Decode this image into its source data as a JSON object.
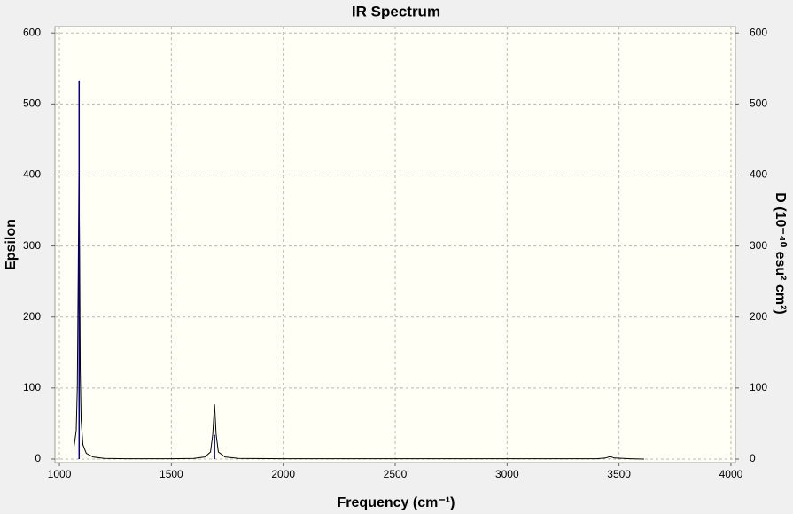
{
  "chart_data": {
    "type": "line",
    "title": "IR Spectrum",
    "x_label": "Frequency (cm⁻¹)",
    "y_label": "Epsilon",
    "y2_label": "D (10⁻⁴⁰ esu² cm²)",
    "xlim": [
      980,
      4020
    ],
    "xticks": [
      1000,
      1500,
      2000,
      2500,
      3000,
      3500,
      4000
    ],
    "ylim": [
      -5,
      609
    ],
    "yticks": [
      0,
      100,
      200,
      300,
      400,
      500,
      600
    ],
    "y2lim": [
      -5,
      609
    ],
    "y2ticks": [
      0,
      100,
      200,
      300,
      400,
      500,
      600
    ],
    "grid": true,
    "series": [
      {
        "style": "line",
        "color": "#000000",
        "x": [
          1065,
          1075,
          1080,
          1084,
          1087,
          1090,
          1093,
          1097,
          1105,
          1120,
          1150,
          1200,
          1300,
          1500,
          1600,
          1650,
          1675,
          1685,
          1693,
          1700,
          1710,
          1740,
          1800,
          2000,
          2600,
          3400,
          3440,
          3460,
          3480,
          3550,
          3612
        ],
        "values": [
          17,
          40,
          100,
          260,
          403,
          300,
          125,
          55,
          20,
          8,
          3,
          1,
          0.5,
          0.5,
          1,
          3,
          10,
          35,
          77,
          35,
          10,
          3,
          1,
          0.5,
          0.5,
          0.5,
          1.5,
          3.5,
          1.5,
          0.5,
          0
        ]
      },
      {
        "style": "stick",
        "axis": "y2",
        "color": "#00008b",
        "x": [
          1088,
          1693,
          3460
        ],
        "values": [
          533,
          34,
          1
        ]
      }
    ]
  }
}
